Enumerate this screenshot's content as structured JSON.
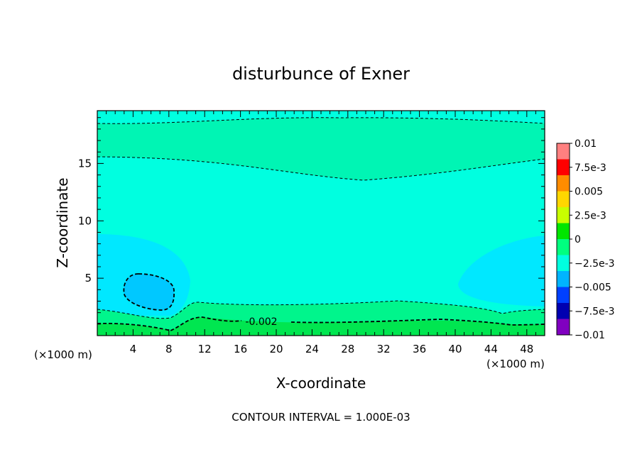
{
  "chart_data": {
    "type": "heatmap",
    "title": "disturbunce of Exner",
    "xlabel": "X-coordinate",
    "ylabel": "Z-coordinate",
    "x_unit": "(×1000 m)",
    "x_unit_right": "(×1000 m)",
    "xlim": [
      0,
      50
    ],
    "ylim": [
      0,
      19.6
    ],
    "x_ticks": [
      4,
      8,
      12,
      16,
      20,
      24,
      28,
      32,
      36,
      40,
      44,
      48
    ],
    "y_ticks": [
      5,
      10,
      15
    ],
    "footer": "CONTOUR INTERVAL = 1.000E-03",
    "contour_interval": 0.001,
    "contour_label": "-0.002",
    "colorbar": {
      "range": [
        -0.01,
        0.01
      ],
      "labels": [
        "0.01",
        "7.5e-3",
        "0.005",
        "2.5e-3",
        "0",
        "−2.5e-3",
        "−0.005",
        "−7.5e-3",
        "−0.01"
      ],
      "colors": [
        "#ff8080",
        "#ff0000",
        "#ff8c00",
        "#ffd700",
        "#c8ff00",
        "#00e600",
        "#00ff7f",
        "#00ffe0",
        "#00b4ff",
        "#0040ff",
        "#0000b0",
        "#8000c0"
      ]
    },
    "regions": [
      {
        "level": "0 to 1e-3",
        "color": "#00e650"
      },
      {
        "level": "-1e-3 to 0",
        "color": "#00f58c"
      },
      {
        "level": "-2e-3 to -1e-3",
        "color": "#00ffd2"
      },
      {
        "level": "-3e-3 to -2e-3",
        "color": "#00e8ff"
      },
      {
        "level": "-4e-3 to -3e-3",
        "color": "#00c8ff"
      }
    ],
    "grid": false
  }
}
